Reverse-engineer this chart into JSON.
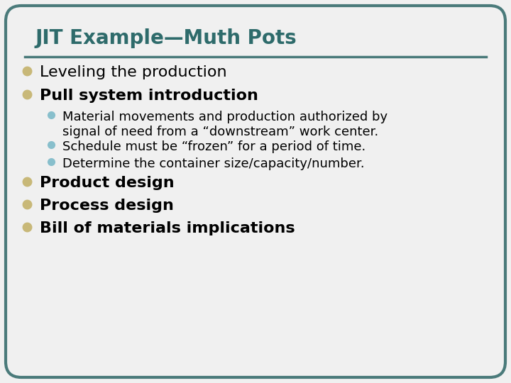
{
  "title": "JIT Example—Muth Pots",
  "title_color": "#2e6b6b",
  "title_fontsize": 20,
  "bg_color": "#f0f0f0",
  "border_color": "#4a7a7a",
  "line_color": "#4a7a7a",
  "bullet_color_large": "#c8b878",
  "bullet_color_small": "#88bfcc",
  "bullet1": "Leveling the production",
  "bullet1_bold": false,
  "bullet2": "Pull system introduction",
  "bullet2_bold": true,
  "sub_bullet1a": "Material movements and production authorized by",
  "sub_bullet1b": "signal of need from a “downstream” work center.",
  "sub_bullet2": "Schedule must be “frozen” for a period of time.",
  "sub_bullet3": "Determine the container size/capacity/number.",
  "bullet3": "Product design",
  "bullet4": "Process design",
  "bullet5": "Bill of materials implications",
  "body_color": "#000000",
  "body_fontsize": 16,
  "sub_fontsize": 13
}
